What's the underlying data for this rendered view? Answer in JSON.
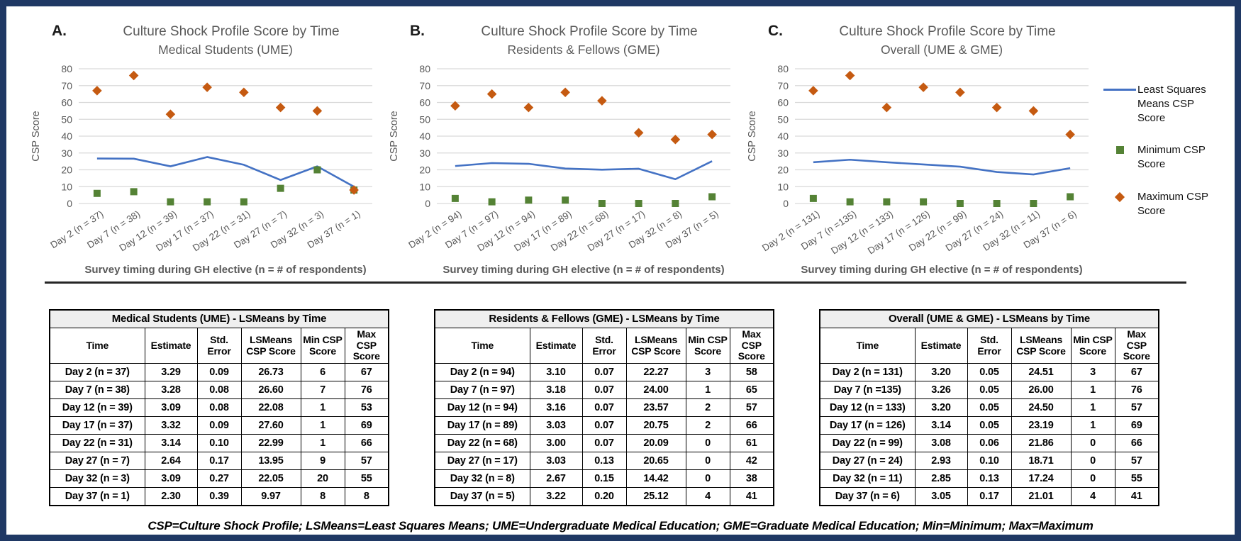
{
  "figure": {
    "border_color": "#1f3864",
    "footnote": "CSP=Culture Shock Profile; LSMeans=Least Squares Means; UME=Undergraduate Medical Education; GME=Graduate Medical Education; Min=Minimum; Max=Maximum"
  },
  "colors": {
    "lsmeans_line": "#4472C4",
    "min_marker": "#548235",
    "max_marker": "#C55A11",
    "axis_text": "#595959",
    "gridline": "#D9D9D9",
    "table_caption_bg": "#efefef"
  },
  "legend": {
    "items": [
      {
        "label": "Least Squares Means CSP Score",
        "marker": "line",
        "color": "#4472C4"
      },
      {
        "label": "Minimum CSP Score",
        "marker": "square",
        "color": "#548235"
      },
      {
        "label": "Maximum CSP Score",
        "marker": "diamond",
        "color": "#C55A11"
      }
    ]
  },
  "chart_data": [
    {
      "type": "line",
      "panel_letter": "A.",
      "title": "Culture Shock Profile Score by Time",
      "subtitle": "Medical Students (UME)",
      "ylabel": "CSP Score",
      "xlabel": "Survey timing during GH elective (n = # of respondents)",
      "ylim": [
        0,
        80
      ],
      "ytick_step": 10,
      "grid": true,
      "legend_position": "right-of-figure",
      "categories": [
        "Day 2 (n = 37)",
        "Day 7 (n = 38)",
        "Day 12 (n = 39)",
        "Day 17 (n = 37)",
        "Day 22 (n = 31)",
        "Day 27 (n = 7)",
        "Day 32 (n = 3)",
        "Day 37 (n = 1)"
      ],
      "series": [
        {
          "name": "Least Squares Means CSP Score",
          "style": "line",
          "color": "#4472C4",
          "values": [
            26.73,
            26.6,
            22.08,
            27.6,
            22.99,
            13.95,
            22.05,
            9.97
          ]
        },
        {
          "name": "Minimum CSP Score",
          "style": "square",
          "color": "#548235",
          "values": [
            6,
            7,
            1,
            1,
            1,
            9,
            20,
            8
          ]
        },
        {
          "name": "Maximum CSP Score",
          "style": "diamond",
          "color": "#C55A11",
          "values": [
            67,
            76,
            53,
            69,
            66,
            57,
            55,
            8
          ]
        }
      ]
    },
    {
      "type": "line",
      "panel_letter": "B.",
      "title": "Culture Shock Profile Score by Time",
      "subtitle": "Residents & Fellows (GME)",
      "ylabel": "CSP Score",
      "xlabel": "Survey timing during GH elective (n = # of respondents)",
      "ylim": [
        0,
        80
      ],
      "ytick_step": 10,
      "grid": true,
      "legend_position": "right-of-figure",
      "categories": [
        "Day 2 (n = 94)",
        "Day 7 (n = 97)",
        "Day 12 (n = 94)",
        "Day 17 (n = 89)",
        "Day 22 (n = 68)",
        "Day 27 (n = 17)",
        "Day 32 (n = 8)",
        "Day 37 (n = 5)"
      ],
      "series": [
        {
          "name": "Least Squares Means CSP Score",
          "style": "line",
          "color": "#4472C4",
          "values": [
            22.27,
            24.0,
            23.57,
            20.75,
            20.09,
            20.65,
            14.42,
            25.12
          ]
        },
        {
          "name": "Minimum CSP Score",
          "style": "square",
          "color": "#548235",
          "values": [
            3,
            1,
            2,
            2,
            0,
            0,
            0,
            4
          ]
        },
        {
          "name": "Maximum CSP Score",
          "style": "diamond",
          "color": "#C55A11",
          "values": [
            58,
            65,
            57,
            66,
            61,
            42,
            38,
            41
          ]
        }
      ]
    },
    {
      "type": "line",
      "panel_letter": "C.",
      "title": "Culture Shock Profile Score by Time",
      "subtitle": "Overall (UME & GME)",
      "ylabel": "CSP Score",
      "xlabel": "Survey timing during GH elective (n = # of respondents)",
      "ylim": [
        0,
        80
      ],
      "ytick_step": 10,
      "grid": true,
      "legend_position": "right-of-figure",
      "categories": [
        "Day 2 (n = 131)",
        "Day 7 (n =135)",
        "Day 12 (n = 133)",
        "Day 17 (n = 126)",
        "Day 22 (n = 99)",
        "Day 27 (n = 24)",
        "Day 32 (n = 11)",
        "Day 37 (n = 6)"
      ],
      "series": [
        {
          "name": "Least Squares Means CSP Score",
          "style": "line",
          "color": "#4472C4",
          "values": [
            24.51,
            26.0,
            24.5,
            23.19,
            21.86,
            18.71,
            17.24,
            21.01
          ]
        },
        {
          "name": "Minimum CSP Score",
          "style": "square",
          "color": "#548235",
          "values": [
            3,
            1,
            1,
            1,
            0,
            0,
            0,
            4
          ]
        },
        {
          "name": "Maximum CSP Score",
          "style": "diamond",
          "color": "#C55A11",
          "values": [
            67,
            76,
            57,
            69,
            66,
            57,
            55,
            41
          ]
        }
      ]
    }
  ],
  "tables": [
    {
      "title": "Medical Students (UME) - LSMeans by Time",
      "headers": [
        "Time",
        "Estimate",
        "Std. Error",
        "LSMeans CSP Score",
        "Min CSP Score",
        "Max CSP Score"
      ],
      "rows": [
        [
          "Day 2 (n = 37)",
          "3.29",
          "0.09",
          "26.73",
          "6",
          "67"
        ],
        [
          "Day 7 (n = 38)",
          "3.28",
          "0.08",
          "26.60",
          "7",
          "76"
        ],
        [
          "Day 12 (n = 39)",
          "3.09",
          "0.08",
          "22.08",
          "1",
          "53"
        ],
        [
          "Day 17 (n = 37)",
          "3.32",
          "0.09",
          "27.60",
          "1",
          "69"
        ],
        [
          "Day 22 (n = 31)",
          "3.14",
          "0.10",
          "22.99",
          "1",
          "66"
        ],
        [
          "Day 27 (n = 7)",
          "2.64",
          "0.17",
          "13.95",
          "9",
          "57"
        ],
        [
          "Day 32 (n = 3)",
          "3.09",
          "0.27",
          "22.05",
          "20",
          "55"
        ],
        [
          "Day 37 (n = 1)",
          "2.30",
          "0.39",
          "9.97",
          "8",
          "8"
        ]
      ]
    },
    {
      "title": "Residents & Fellows (GME) - LSMeans by Time",
      "headers": [
        "Time",
        "Estimate",
        "Std. Error",
        "LSMeans CSP Score",
        "Min CSP Score",
        "Max CSP Score"
      ],
      "rows": [
        [
          "Day 2 (n = 94)",
          "3.10",
          "0.07",
          "22.27",
          "3",
          "58"
        ],
        [
          "Day 7 (n = 97)",
          "3.18",
          "0.07",
          "24.00",
          "1",
          "65"
        ],
        [
          "Day 12 (n = 94)",
          "3.16",
          "0.07",
          "23.57",
          "2",
          "57"
        ],
        [
          "Day 17 (n = 89)",
          "3.03",
          "0.07",
          "20.75",
          "2",
          "66"
        ],
        [
          "Day 22 (n = 68)",
          "3.00",
          "0.07",
          "20.09",
          "0",
          "61"
        ],
        [
          "Day 27 (n = 17)",
          "3.03",
          "0.13",
          "20.65",
          "0",
          "42"
        ],
        [
          "Day 32 (n = 8)",
          "2.67",
          "0.15",
          "14.42",
          "0",
          "38"
        ],
        [
          "Day 37 (n = 5)",
          "3.22",
          "0.20",
          "25.12",
          "4",
          "41"
        ]
      ]
    },
    {
      "title": "Overall (UME & GME) - LSMeans by Time",
      "headers": [
        "Time",
        "Estimate",
        "Std. Error",
        "LSMeans CSP Score",
        "Min CSP Score",
        "Max CSP Score"
      ],
      "rows": [
        [
          "Day 2 (n = 131)",
          "3.20",
          "0.05",
          "24.51",
          "3",
          "67"
        ],
        [
          "Day 7 (n =135)",
          "3.26",
          "0.05",
          "26.00",
          "1",
          "76"
        ],
        [
          "Day 12 (n = 133)",
          "3.20",
          "0.05",
          "24.50",
          "1",
          "57"
        ],
        [
          "Day 17 (n = 126)",
          "3.14",
          "0.05",
          "23.19",
          "1",
          "69"
        ],
        [
          "Day 22 (n = 99)",
          "3.08",
          "0.06",
          "21.86",
          "0",
          "66"
        ],
        [
          "Day 27 (n = 24)",
          "2.93",
          "0.10",
          "18.71",
          "0",
          "57"
        ],
        [
          "Day 32 (n = 11)",
          "2.85",
          "0.13",
          "17.24",
          "0",
          "55"
        ],
        [
          "Day 37 (n = 6)",
          "3.05",
          "0.17",
          "21.01",
          "4",
          "41"
        ]
      ]
    }
  ]
}
